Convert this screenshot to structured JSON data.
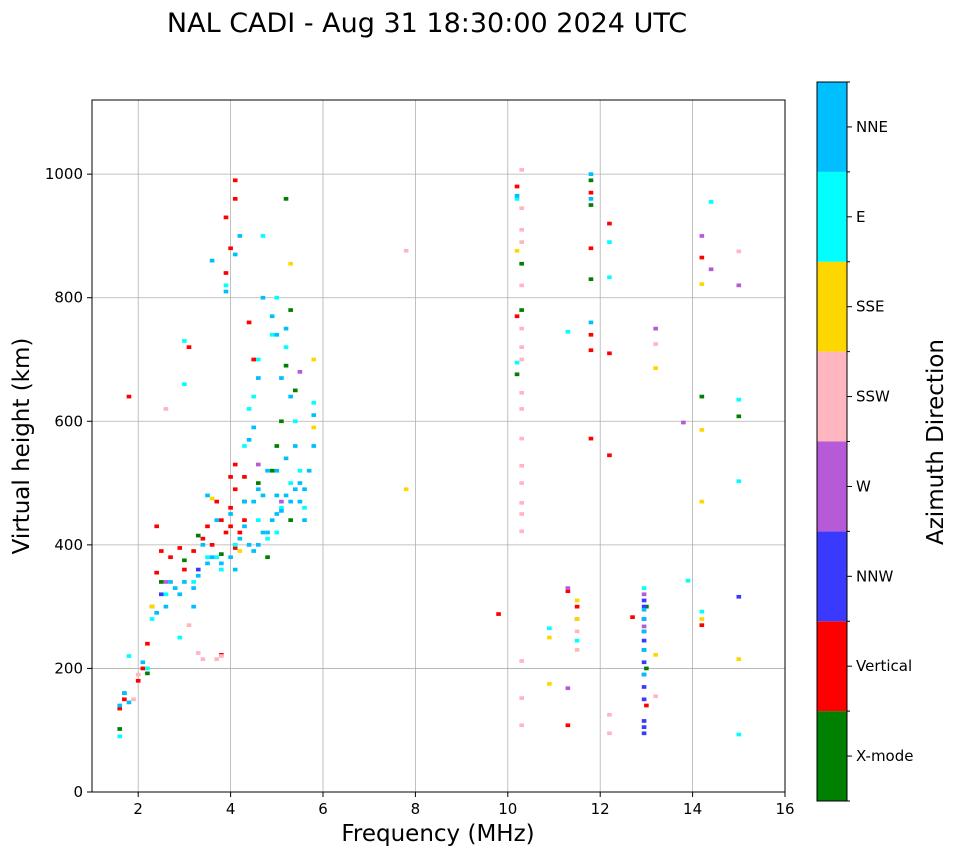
{
  "chart_data": {
    "type": "scatter",
    "title": "NAL CADI - Aug 31 18:30:00 2024 UTC",
    "xlabel": "Frequency (MHz)",
    "ylabel": "Virtual height (km)",
    "xlim": [
      1,
      16
    ],
    "ylim": [
      0,
      1120
    ],
    "xticks": [
      2,
      4,
      6,
      8,
      10,
      12,
      14,
      16
    ],
    "yticks": [
      0,
      200,
      400,
      600,
      800,
      1000
    ],
    "grid": true,
    "colorbar": {
      "label": "Azimuth Direction",
      "categories": [
        {
          "name": "X-mode",
          "color": "#008000"
        },
        {
          "name": "Vertical",
          "color": "#ff0000"
        },
        {
          "name": "NNW",
          "color": "#3a3aff"
        },
        {
          "name": "W",
          "color": "#b65ad8"
        },
        {
          "name": "SSW",
          "color": "#ffb6c1"
        },
        {
          "name": "SSE",
          "color": "#ffd700"
        },
        {
          "name": "E",
          "color": "#00ffff"
        },
        {
          "name": "NNE",
          "color": "#00bfff"
        }
      ]
    },
    "point_width_mhz": 0.1,
    "point_height_km": 6,
    "series": [
      {
        "name": "X-mode",
        "points": [
          [
            1.6,
            102
          ],
          [
            2.2,
            192
          ],
          [
            2.5,
            340
          ],
          [
            3.0,
            375
          ],
          [
            3.3,
            415
          ],
          [
            3.8,
            385
          ],
          [
            4.1,
            400
          ],
          [
            4.3,
            470
          ],
          [
            4.6,
            500
          ],
          [
            4.9,
            520
          ],
          [
            5.0,
            560
          ],
          [
            5.2,
            690
          ],
          [
            5.2,
            960
          ],
          [
            5.3,
            780
          ],
          [
            5.4,
            650
          ],
          [
            5.1,
            600
          ],
          [
            5.3,
            440
          ],
          [
            4.8,
            380
          ],
          [
            10.2,
            676
          ],
          [
            10.3,
            855
          ],
          [
            10.3,
            780
          ],
          [
            11.8,
            830
          ],
          [
            11.8,
            950
          ],
          [
            11.8,
            990
          ],
          [
            13.0,
            300
          ],
          [
            13.0,
            200
          ],
          [
            14.2,
            640
          ],
          [
            15.0,
            608
          ]
        ]
      },
      {
        "name": "Vertical",
        "points": [
          [
            1.6,
            135
          ],
          [
            1.7,
            150
          ],
          [
            2.0,
            180
          ],
          [
            2.1,
            200
          ],
          [
            2.2,
            240
          ],
          [
            2.3,
            300
          ],
          [
            2.4,
            355
          ],
          [
            2.5,
            390
          ],
          [
            2.7,
            380
          ],
          [
            2.9,
            395
          ],
          [
            3.0,
            360
          ],
          [
            3.1,
            720
          ],
          [
            3.2,
            390
          ],
          [
            3.4,
            410
          ],
          [
            3.5,
            430
          ],
          [
            3.6,
            400
          ],
          [
            3.7,
            470
          ],
          [
            3.8,
            440
          ],
          [
            3.9,
            420
          ],
          [
            4.0,
            430
          ],
          [
            4.0,
            510
          ],
          [
            4.1,
            490
          ],
          [
            4.1,
            530
          ],
          [
            4.0,
            460
          ],
          [
            4.1,
            395
          ],
          [
            4.2,
            420
          ],
          [
            4.3,
            440
          ],
          [
            3.8,
            222
          ],
          [
            3.9,
            930
          ],
          [
            4.0,
            880
          ],
          [
            4.1,
            960
          ],
          [
            4.1,
            990
          ],
          [
            3.9,
            840
          ],
          [
            4.4,
            760
          ],
          [
            4.5,
            700
          ],
          [
            4.3,
            510
          ],
          [
            2.4,
            430
          ],
          [
            1.8,
            640
          ],
          [
            9.8,
            288
          ],
          [
            10.2,
            770
          ],
          [
            10.2,
            980
          ],
          [
            11.8,
            740
          ],
          [
            11.8,
            880
          ],
          [
            11.8,
            970
          ],
          [
            11.8,
            715
          ],
          [
            12.2,
            920
          ],
          [
            12.2,
            710
          ],
          [
            12.2,
            545
          ],
          [
            11.3,
            325
          ],
          [
            11.3,
            108
          ],
          [
            11.5,
            300
          ],
          [
            12.7,
            283
          ],
          [
            13.0,
            140
          ],
          [
            14.2,
            270
          ],
          [
            14.2,
            865
          ],
          [
            11.8,
            572
          ]
        ]
      },
      {
        "name": "NNW",
        "points": [
          [
            12.95,
            95
          ],
          [
            12.95,
            105
          ],
          [
            12.95,
            115
          ],
          [
            12.95,
            150
          ],
          [
            12.95,
            170
          ],
          [
            12.95,
            190
          ],
          [
            12.95,
            210
          ],
          [
            12.95,
            230
          ],
          [
            12.95,
            245
          ],
          [
            12.95,
            260
          ],
          [
            12.95,
            280
          ],
          [
            12.95,
            300
          ],
          [
            12.95,
            310
          ],
          [
            15.0,
            316
          ],
          [
            1.7,
            160
          ],
          [
            2.5,
            320
          ],
          [
            3.3,
            360
          ]
        ]
      },
      {
        "name": "W",
        "points": [
          [
            11.3,
            168
          ],
          [
            11.3,
            330
          ],
          [
            11.5,
            280
          ],
          [
            12.95,
            320
          ],
          [
            13.2,
            750
          ],
          [
            14.2,
            900
          ],
          [
            14.4,
            846
          ],
          [
            15.0,
            820
          ],
          [
            13.8,
            598
          ],
          [
            12.95,
            268
          ],
          [
            4.6,
            530
          ],
          [
            5.5,
            680
          ],
          [
            5.1,
            470
          ],
          [
            2.6,
            340
          ]
        ]
      },
      {
        "name": "SSW",
        "points": [
          [
            2.6,
            620
          ],
          [
            3.1,
            270
          ],
          [
            3.3,
            225
          ],
          [
            3.4,
            215
          ],
          [
            3.7,
            215
          ],
          [
            3.8,
            220
          ],
          [
            7.8,
            876
          ],
          [
            10.3,
            108
          ],
          [
            10.3,
            152
          ],
          [
            10.3,
            212
          ],
          [
            10.3,
            422
          ],
          [
            10.3,
            450
          ],
          [
            10.3,
            468
          ],
          [
            10.3,
            500
          ],
          [
            10.3,
            528
          ],
          [
            10.3,
            572
          ],
          [
            10.3,
            620
          ],
          [
            10.3,
            646
          ],
          [
            10.3,
            700
          ],
          [
            10.3,
            720
          ],
          [
            10.3,
            750
          ],
          [
            10.3,
            820
          ],
          [
            10.3,
            890
          ],
          [
            10.3,
            910
          ],
          [
            10.3,
            945
          ],
          [
            10.3,
            1007
          ],
          [
            12.2,
            95
          ],
          [
            12.2,
            125
          ],
          [
            13.2,
            155
          ],
          [
            13.2,
            725
          ],
          [
            15.0,
            875
          ],
          [
            11.5,
            230
          ],
          [
            11.5,
            260
          ],
          [
            2.0,
            190
          ],
          [
            1.9,
            150
          ]
        ]
      },
      {
        "name": "SSE",
        "points": [
          [
            7.8,
            490
          ],
          [
            10.2,
            876
          ],
          [
            10.9,
            175
          ],
          [
            10.9,
            250
          ],
          [
            11.5,
            280
          ],
          [
            11.5,
            310
          ],
          [
            13.2,
            222
          ],
          [
            13.2,
            686
          ],
          [
            14.2,
            280
          ],
          [
            14.2,
            470
          ],
          [
            14.2,
            586
          ],
          [
            14.2,
            822
          ],
          [
            15.0,
            215
          ],
          [
            5.8,
            700
          ],
          [
            5.8,
            590
          ],
          [
            4.2,
            390
          ],
          [
            2.3,
            300
          ],
          [
            3.6,
            475
          ],
          [
            5.3,
            855
          ]
        ]
      },
      {
        "name": "E",
        "points": [
          [
            1.6,
            90
          ],
          [
            1.8,
            220
          ],
          [
            2.2,
            200
          ],
          [
            2.3,
            280
          ],
          [
            2.6,
            320
          ],
          [
            2.9,
            250
          ],
          [
            3.0,
            660
          ],
          [
            3.0,
            730
          ],
          [
            3.2,
            340
          ],
          [
            3.5,
            380
          ],
          [
            3.7,
            380
          ],
          [
            3.8,
            360
          ],
          [
            3.9,
            820
          ],
          [
            4.1,
            400
          ],
          [
            4.3,
            560
          ],
          [
            4.4,
            620
          ],
          [
            4.5,
            640
          ],
          [
            4.6,
            700
          ],
          [
            4.7,
            900
          ],
          [
            4.9,
            740
          ],
          [
            5.0,
            800
          ],
          [
            5.2,
            720
          ],
          [
            5.4,
            600
          ],
          [
            10.2,
            695
          ],
          [
            10.2,
            960
          ],
          [
            10.9,
            265
          ],
          [
            11.3,
            745
          ],
          [
            11.5,
            245
          ],
          [
            12.2,
            890
          ],
          [
            12.2,
            833
          ],
          [
            14.4,
            955
          ],
          [
            15.0,
            635
          ],
          [
            15.0,
            503
          ],
          [
            15.0,
            93
          ],
          [
            12.95,
            330
          ],
          [
            13.9,
            342
          ],
          [
            14.2,
            292
          ],
          [
            5.8,
            630
          ],
          [
            5.5,
            520
          ],
          [
            5.6,
            460
          ],
          [
            5.0,
            420
          ],
          [
            5.3,
            500
          ],
          [
            4.6,
            440
          ],
          [
            4.8,
            410
          ],
          [
            5.1,
            460
          ]
        ]
      },
      {
        "name": "NNE",
        "points": [
          [
            1.6,
            140
          ],
          [
            1.7,
            160
          ],
          [
            1.8,
            145
          ],
          [
            2.1,
            210
          ],
          [
            2.4,
            290
          ],
          [
            2.6,
            300
          ],
          [
            2.8,
            330
          ],
          [
            2.9,
            320
          ],
          [
            3.0,
            340
          ],
          [
            3.2,
            330
          ],
          [
            3.3,
            350
          ],
          [
            3.5,
            370
          ],
          [
            3.6,
            380
          ],
          [
            3.8,
            370
          ],
          [
            4.0,
            380
          ],
          [
            4.1,
            360
          ],
          [
            4.2,
            410
          ],
          [
            4.3,
            430
          ],
          [
            4.4,
            400
          ],
          [
            4.5,
            390
          ],
          [
            4.6,
            400
          ],
          [
            4.7,
            420
          ],
          [
            4.8,
            420
          ],
          [
            4.9,
            440
          ],
          [
            5.0,
            450
          ],
          [
            5.1,
            455
          ],
          [
            5.2,
            480
          ],
          [
            5.3,
            470
          ],
          [
            5.4,
            490
          ],
          [
            5.5,
            500
          ],
          [
            5.6,
            490
          ],
          [
            5.7,
            520
          ],
          [
            5.8,
            610
          ],
          [
            5.8,
            560
          ],
          [
            4.5,
            470
          ],
          [
            4.6,
            490
          ],
          [
            4.7,
            480
          ],
          [
            4.8,
            520
          ],
          [
            5.0,
            520
          ],
          [
            5.2,
            540
          ],
          [
            5.4,
            560
          ],
          [
            3.9,
            810
          ],
          [
            4.2,
            900
          ],
          [
            4.7,
            800
          ],
          [
            4.9,
            770
          ],
          [
            5.0,
            740
          ],
          [
            5.2,
            750
          ],
          [
            5.1,
            670
          ],
          [
            5.3,
            640
          ],
          [
            4.5,
            590
          ],
          [
            4.6,
            670
          ],
          [
            4.4,
            570
          ],
          [
            3.6,
            860
          ],
          [
            4.1,
            870
          ],
          [
            10.2,
            965
          ],
          [
            11.8,
            960
          ],
          [
            11.8,
            1000
          ],
          [
            11.8,
            760
          ],
          [
            12.95,
            190
          ],
          [
            12.95,
            230
          ],
          [
            12.95,
            260
          ],
          [
            12.95,
            280
          ],
          [
            12.95,
            295
          ],
          [
            3.2,
            300
          ],
          [
            2.7,
            340
          ],
          [
            3.4,
            400
          ],
          [
            3.7,
            440
          ],
          [
            3.5,
            480
          ],
          [
            4.0,
            450
          ],
          [
            4.3,
            470
          ],
          [
            5.0,
            480
          ],
          [
            5.5,
            470
          ],
          [
            5.6,
            440
          ]
        ]
      }
    ]
  }
}
